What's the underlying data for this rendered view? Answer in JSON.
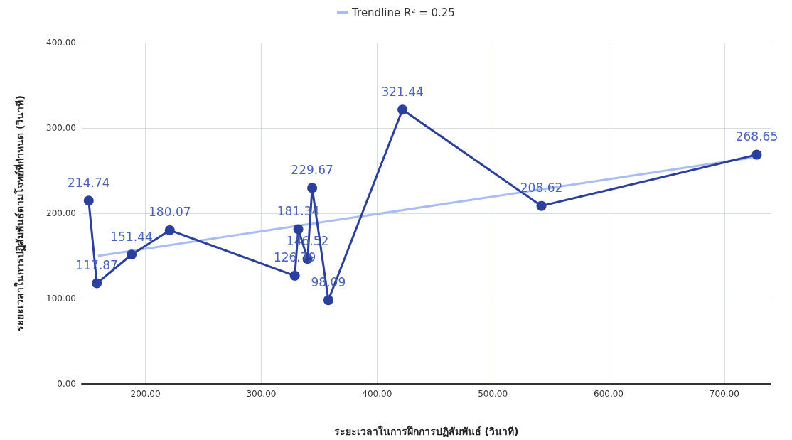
{
  "chart_data": {
    "type": "line",
    "xlabel": "ระยะเวลาในการฝึกการปฏิสัมพันธ์ (วินาที)",
    "ylabel": "ระยะเวลาในการปฏิสัมพันธ์ตามโจทย์ที่กำหนด (วินาที)",
    "series": [
      {
        "color": "#2b3f9c",
        "marker": "circle",
        "x": [
          151,
          158,
          188,
          221,
          329,
          332,
          340,
          344,
          358,
          422,
          542,
          728
        ],
        "values": [
          214.74,
          117.87,
          151.44,
          180.07,
          126.79,
          181.34,
          146.52,
          229.67,
          98.09,
          321.44,
          208.62,
          268.65
        ],
        "value_labels": [
          "214.74",
          "117.87",
          "151.44",
          "180.07",
          "126.79",
          "181.34",
          "146.52",
          "229.67",
          "98.09",
          "321.44",
          "208.62",
          "268.65"
        ]
      },
      {
        "name": "Trendline R² = 0.25",
        "color": "#a9bdf2",
        "marker": "none",
        "x": [
          159,
          728
        ],
        "values": [
          150,
          266
        ]
      }
    ],
    "xlim": [
      145,
      740
    ],
    "xticks": [
      {
        "value": 200,
        "label": "200.00"
      },
      {
        "value": 300,
        "label": "300.00"
      },
      {
        "value": 400,
        "label": "400.00"
      },
      {
        "value": 500,
        "label": "500.00"
      },
      {
        "value": 600,
        "label": "600.00"
      },
      {
        "value": 700,
        "label": "700.00"
      }
    ],
    "ylim": [
      0,
      400
    ],
    "yticks": [
      {
        "value": 0,
        "label": "0.00"
      },
      {
        "value": 100,
        "label": "100.00"
      },
      {
        "value": 200,
        "label": "200.00"
      },
      {
        "value": 300,
        "label": "300.00"
      },
      {
        "value": 400,
        "label": "400.00"
      }
    ],
    "grid": true,
    "legend": "top"
  }
}
